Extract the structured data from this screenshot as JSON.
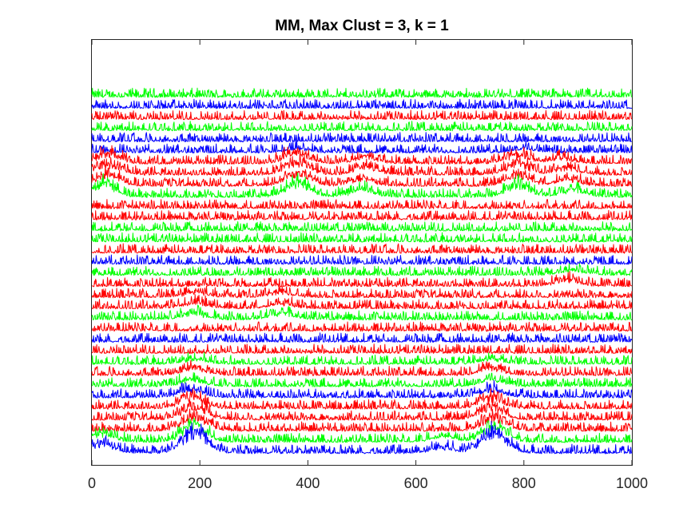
{
  "chart_data": {
    "type": "line",
    "title": "MM, Max Clust = 3, k = 1",
    "xlabel": "",
    "ylabel": "",
    "xlim": [
      0,
      1000
    ],
    "x_ticks": [
      0,
      200,
      400,
      600,
      800,
      1000
    ],
    "x_tick_labels": [
      "0",
      "200",
      "400",
      "600",
      "800",
      "1000"
    ],
    "y_ticks_visible": false,
    "grid": false,
    "legend": "none",
    "n_samples": 1000,
    "colors": {
      "blue": "#0000ff",
      "red": "#ff0000",
      "green": "#00ff00"
    },
    "traces_top_to_bottom": [
      {
        "color": "green",
        "peaks": []
      },
      {
        "color": "blue",
        "peaks": []
      },
      {
        "color": "red",
        "peaks": []
      },
      {
        "color": "green",
        "peaks": []
      },
      {
        "color": "blue",
        "peaks": []
      },
      {
        "color": "blue",
        "peaks": [
          [
            380,
            0.3
          ],
          [
            800,
            0.3
          ]
        ]
      },
      {
        "color": "red",
        "peaks": [
          [
            30,
            0.8
          ],
          [
            380,
            1.0
          ],
          [
            510,
            0.6
          ],
          [
            790,
            0.8
          ],
          [
            870,
            0.5
          ]
        ]
      },
      {
        "color": "red",
        "peaks": [
          [
            30,
            1.0
          ],
          [
            380,
            1.2
          ],
          [
            510,
            0.7
          ],
          [
            790,
            1.0
          ],
          [
            880,
            0.6
          ]
        ]
      },
      {
        "color": "red",
        "peaks": [
          [
            30,
            1.0
          ],
          [
            380,
            1.2
          ],
          [
            500,
            0.6
          ],
          [
            790,
            1.0
          ],
          [
            880,
            0.6
          ]
        ]
      },
      {
        "color": "green",
        "peaks": [
          [
            20,
            1.2
          ],
          [
            380,
            1.3
          ],
          [
            500,
            0.6
          ],
          [
            790,
            1.2
          ],
          [
            890,
            0.6
          ]
        ]
      },
      {
        "color": "red",
        "peaks": []
      },
      {
        "color": "red",
        "peaks": []
      },
      {
        "color": "green",
        "peaks": []
      },
      {
        "color": "green",
        "peaks": []
      },
      {
        "color": "red",
        "peaks": []
      },
      {
        "color": "blue",
        "peaks": []
      },
      {
        "color": "green",
        "peaks": [
          [
            890,
            0.4
          ]
        ]
      },
      {
        "color": "red",
        "peaks": [
          [
            880,
            0.5
          ]
        ]
      },
      {
        "color": "red",
        "peaks": [
          [
            190,
            0.4
          ],
          [
            350,
            0.4
          ]
        ]
      },
      {
        "color": "red",
        "peaks": [
          [
            190,
            0.5
          ],
          [
            350,
            0.4
          ]
        ]
      },
      {
        "color": "green",
        "peaks": [
          [
            190,
            0.5
          ],
          [
            350,
            0.5
          ]
        ]
      },
      {
        "color": "red",
        "peaks": []
      },
      {
        "color": "blue",
        "peaks": []
      },
      {
        "color": "red",
        "peaks": []
      },
      {
        "color": "green",
        "peaks": [
          [
            190,
            0.4
          ],
          [
            740,
            0.4
          ]
        ]
      },
      {
        "color": "red",
        "peaks": [
          [
            190,
            0.6
          ],
          [
            740,
            0.6
          ]
        ]
      },
      {
        "color": "green",
        "peaks": [
          [
            185,
            0.6
          ],
          [
            740,
            0.6
          ]
        ]
      },
      {
        "color": "blue",
        "peaks": [
          [
            185,
            0.7
          ],
          [
            740,
            0.7
          ]
        ]
      },
      {
        "color": "red",
        "peaks": [
          [
            185,
            1.1
          ],
          [
            740,
            1.0
          ]
        ]
      },
      {
        "color": "red",
        "peaks": [
          [
            190,
            1.3
          ],
          [
            740,
            1.2
          ]
        ]
      },
      {
        "color": "red",
        "peaks": [
          [
            190,
            1.4
          ],
          [
            745,
            1.3
          ]
        ]
      },
      {
        "color": "green",
        "peaks": [
          [
            20,
            0.7
          ],
          [
            190,
            1.5
          ],
          [
            650,
            0.5
          ],
          [
            745,
            1.5
          ]
        ]
      },
      {
        "color": "blue",
        "peaks": [
          [
            20,
            0.8
          ],
          [
            190,
            2.0
          ],
          [
            650,
            0.5
          ],
          [
            745,
            2.0
          ]
        ]
      }
    ]
  }
}
